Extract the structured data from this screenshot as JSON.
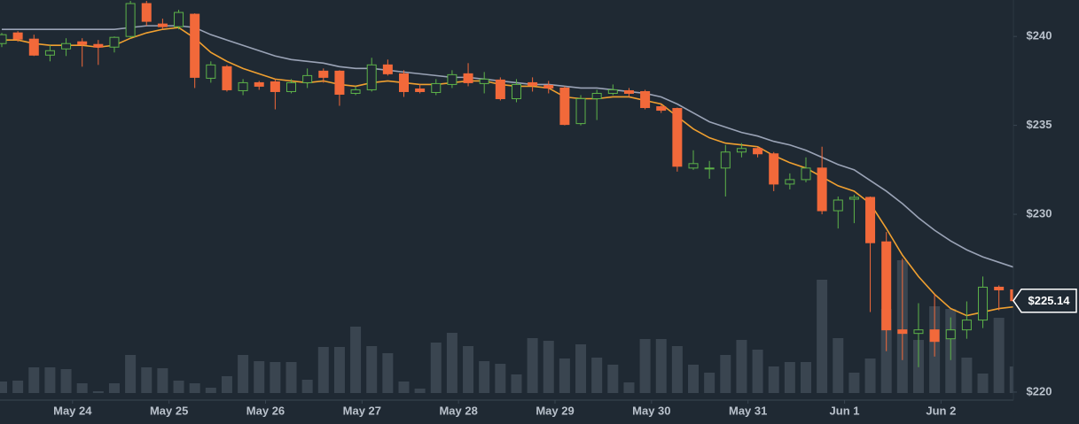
{
  "chart_data": {
    "type": "candlestick",
    "categories": [
      null,
      null,
      null,
      null,
      null,
      null,
      null,
      null,
      null,
      null,
      null,
      null,
      null,
      null,
      null,
      null,
      null,
      null,
      null,
      null,
      null,
      null,
      null,
      null,
      null,
      null,
      null,
      null,
      null,
      null,
      null,
      null,
      null,
      null,
      null,
      null,
      null,
      null,
      null,
      null,
      null,
      null,
      null,
      null,
      null,
      null,
      null,
      null,
      null,
      null,
      null,
      null,
      null,
      null,
      null,
      null,
      null,
      null,
      null,
      null,
      null,
      null,
      null,
      null
    ],
    "open": [
      239.6,
      240.2,
      239.85,
      238.95,
      239.3,
      239.7,
      239.55,
      239.4,
      240.0,
      241.85,
      240.7,
      240.55,
      241.25,
      237.65,
      238.3,
      236.95,
      237.4,
      237.45,
      236.9,
      237.4,
      238.05,
      238.05,
      236.8,
      237.0,
      238.4,
      237.9,
      237.05,
      236.85,
      237.3,
      237.9,
      237.35,
      237.55,
      236.5,
      237.4,
      237.25,
      237.1,
      235.1,
      236.5,
      236.8,
      236.95,
      236.9,
      236.05,
      235.95,
      232.6,
      232.55,
      232.6,
      233.5,
      233.7,
      233.4,
      231.7,
      231.95,
      232.6,
      230.2,
      230.85,
      230.95,
      228.45,
      223.5,
      223.3,
      223.5,
      223.0,
      223.5,
      224.05,
      225.9,
      225.75
    ],
    "high": [
      240.2,
      240.3,
      240.1,
      239.5,
      239.9,
      239.9,
      239.8,
      240.0,
      242.0,
      242.0,
      241.0,
      241.5,
      241.3,
      238.6,
      238.4,
      237.6,
      237.5,
      237.6,
      237.6,
      238.2,
      238.2,
      238.1,
      237.2,
      238.8,
      238.7,
      238.1,
      237.3,
      237.6,
      238.1,
      238.5,
      238.0,
      237.7,
      237.6,
      237.7,
      237.5,
      237.2,
      236.7,
      237.0,
      237.3,
      237.1,
      237.0,
      236.2,
      236.0,
      233.6,
      233.0,
      233.9,
      234.0,
      233.8,
      233.5,
      232.3,
      233.2,
      233.8,
      231.0,
      231.1,
      231.0,
      229.0,
      227.5,
      225.0,
      225.5,
      224.2,
      225.1,
      226.5,
      226.0,
      225.75
    ],
    "low": [
      239.4,
      239.7,
      238.9,
      238.6,
      238.9,
      238.3,
      238.4,
      239.1,
      239.9,
      240.6,
      240.4,
      240.4,
      237.1,
      237.4,
      236.9,
      236.7,
      237.0,
      235.9,
      236.8,
      237.1,
      237.4,
      236.1,
      236.7,
      236.9,
      237.8,
      236.6,
      236.8,
      236.7,
      237.1,
      237.2,
      236.8,
      236.4,
      236.3,
      236.9,
      236.8,
      235.0,
      235.0,
      235.3,
      236.7,
      236.6,
      235.9,
      235.7,
      232.4,
      232.5,
      232.0,
      231.0,
      233.2,
      233.2,
      231.3,
      231.4,
      231.8,
      230.0,
      229.2,
      229.5,
      224.5,
      222.3,
      221.8,
      221.4,
      222.0,
      221.8,
      223.0,
      223.6,
      224.6,
      225.1
    ],
    "close": [
      240.1,
      239.85,
      238.95,
      239.2,
      239.6,
      239.55,
      239.4,
      239.95,
      241.85,
      240.85,
      240.55,
      241.35,
      237.7,
      238.4,
      237.0,
      237.4,
      237.2,
      236.9,
      237.4,
      237.8,
      237.7,
      236.75,
      237.0,
      238.4,
      237.9,
      236.9,
      236.9,
      237.35,
      237.85,
      237.4,
      237.6,
      236.5,
      237.3,
      237.25,
      237.1,
      235.05,
      236.5,
      236.8,
      237.0,
      236.8,
      236.0,
      235.85,
      232.7,
      232.85,
      232.6,
      233.5,
      233.7,
      233.4,
      231.7,
      231.95,
      232.6,
      230.2,
      230.8,
      230.95,
      228.4,
      223.5,
      223.3,
      223.5,
      222.85,
      223.5,
      224.05,
      225.9,
      225.75,
      225.14
    ],
    "up_color": "#5db349",
    "down_color": "#f2693a",
    "volume": {
      "color": "#3a4550",
      "values": [
        13,
        14,
        29,
        29,
        27,
        11,
        2,
        11,
        43,
        29,
        28,
        14,
        11,
        6,
        19,
        43,
        36,
        35,
        35,
        15,
        52,
        52,
        75,
        53,
        45,
        13,
        5,
        57,
        68,
        53,
        36,
        33,
        21,
        62,
        59,
        39,
        55,
        40,
        32,
        12,
        61,
        61,
        53,
        32,
        23,
        43,
        60,
        49,
        30,
        35,
        35,
        128,
        62,
        23,
        39,
        95,
        150,
        60,
        98,
        95,
        40,
        22,
        85,
        30
      ]
    },
    "moving_averages": [
      {
        "color": "#f0a030",
        "values": [
          239.8,
          239.8,
          239.6,
          239.5,
          239.5,
          239.5,
          239.4,
          239.5,
          239.9,
          240.2,
          240.4,
          240.5,
          239.9,
          239.1,
          238.6,
          238.2,
          237.9,
          237.6,
          237.5,
          237.4,
          237.5,
          237.3,
          237.2,
          237.4,
          237.5,
          237.4,
          237.3,
          237.3,
          237.4,
          237.5,
          237.5,
          237.3,
          237.2,
          237.2,
          237.1,
          236.6,
          236.5,
          236.5,
          236.6,
          236.6,
          236.4,
          236.2,
          235.5,
          234.8,
          234.3,
          234.0,
          233.9,
          233.8,
          233.3,
          232.9,
          232.6,
          232.1,
          231.6,
          231.3,
          230.6,
          229.2,
          227.7,
          226.5,
          225.5,
          224.7,
          224.3,
          224.5,
          224.7,
          224.8
        ]
      },
      {
        "color": "#9aa3b6",
        "values": [
          240.4,
          240.4,
          240.4,
          240.4,
          240.4,
          240.4,
          240.4,
          240.4,
          240.5,
          240.6,
          240.6,
          240.6,
          240.5,
          240.1,
          239.8,
          239.5,
          239.2,
          238.9,
          238.7,
          238.6,
          238.5,
          238.3,
          238.2,
          238.2,
          238.1,
          238.0,
          237.9,
          237.8,
          237.7,
          237.7,
          237.6,
          237.5,
          237.4,
          237.3,
          237.3,
          237.2,
          237.1,
          237.1,
          237.0,
          236.9,
          236.8,
          236.6,
          236.2,
          235.7,
          235.2,
          234.9,
          234.6,
          234.4,
          234.1,
          233.9,
          233.6,
          233.2,
          232.8,
          232.5,
          231.9,
          231.3,
          230.6,
          229.8,
          229.1,
          228.5,
          228.0,
          227.6,
          227.3,
          227.0
        ]
      }
    ],
    "price_tag": {
      "value": 225.14,
      "label": "$225.14"
    },
    "xlim": [
      -0.11,
      62.9
    ],
    "xticks": [
      {
        "value": 4.4,
        "label": "May 24"
      },
      {
        "value": 10.4,
        "label": "May 25"
      },
      {
        "value": 16.4,
        "label": "May 26"
      },
      {
        "value": 22.4,
        "label": "May 27"
      },
      {
        "value": 28.4,
        "label": "May 28"
      },
      {
        "value": 34.4,
        "label": "May 29"
      },
      {
        "value": 40.4,
        "label": "May 30"
      },
      {
        "value": 46.4,
        "label": "May 31"
      },
      {
        "value": 52.4,
        "label": "Jun 1"
      },
      {
        "value": 58.4,
        "label": "Jun 2"
      }
    ],
    "ylim": [
      219.55,
      242.05
    ],
    "yticks": [
      {
        "value": 220,
        "label": "$220"
      },
      {
        "value": 230,
        "label": "$230"
      },
      {
        "value": 235,
        "label": "$235"
      },
      {
        "value": 240,
        "label": "$240"
      }
    ]
  }
}
